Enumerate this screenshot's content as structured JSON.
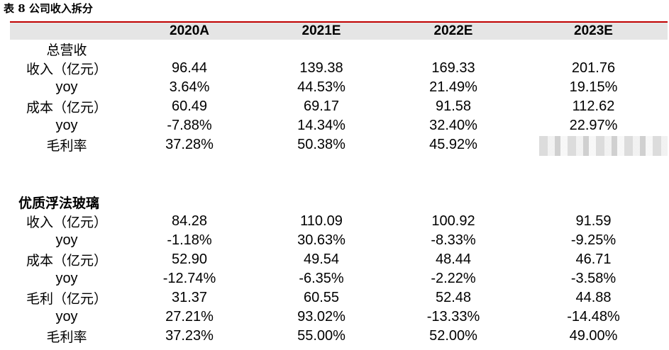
{
  "title": "表 8  公司收入拆分",
  "header": [
    "",
    "2020A",
    "2021E",
    "2022E",
    "2023E"
  ],
  "sections": [
    {
      "name": "总营收",
      "rows": [
        {
          "label": "收入（亿元）",
          "values": [
            "96.44",
            "139.38",
            "169.33",
            "201.76"
          ]
        },
        {
          "label": "yoy",
          "values": [
            "3.64%",
            "44.53%",
            "21.49%",
            "19.15%"
          ]
        },
        {
          "label": "成本（亿元）",
          "values": [
            "60.49",
            "69.17",
            "91.58",
            "112.62"
          ]
        },
        {
          "label": "yoy",
          "values": [
            "-7.88%",
            "14.34%",
            "32.40%",
            "22.97%"
          ]
        },
        {
          "label": "毛利率",
          "values": [
            "37.28%",
            "50.38%",
            "45.92%",
            ""
          ]
        }
      ]
    },
    {
      "name": "优质浮法玻璃",
      "rows": [
        {
          "label": "收入（亿元）",
          "values": [
            "84.28",
            "110.09",
            "100.92",
            "91.59"
          ]
        },
        {
          "label": "yoy",
          "values": [
            "-1.18%",
            "30.63%",
            "-8.33%",
            "-9.25%"
          ]
        },
        {
          "label": "成本（亿元）",
          "values": [
            "52.90",
            "49.54",
            "48.44",
            "46.71"
          ]
        },
        {
          "label": "yoy",
          "values": [
            "-12.74%",
            "-6.35%",
            "-2.22%",
            "-3.58%"
          ]
        },
        {
          "label": "毛利（亿元）",
          "values": [
            "31.37",
            "60.55",
            "52.48",
            "44.88"
          ]
        },
        {
          "label": "yoy",
          "values": [
            "27.21%",
            "93.02%",
            "-13.33%",
            "-14.48%"
          ]
        },
        {
          "label": "毛利率",
          "values": [
            "37.23%",
            "55.00%",
            "52.00%",
            "49.00%"
          ]
        }
      ]
    }
  ]
}
